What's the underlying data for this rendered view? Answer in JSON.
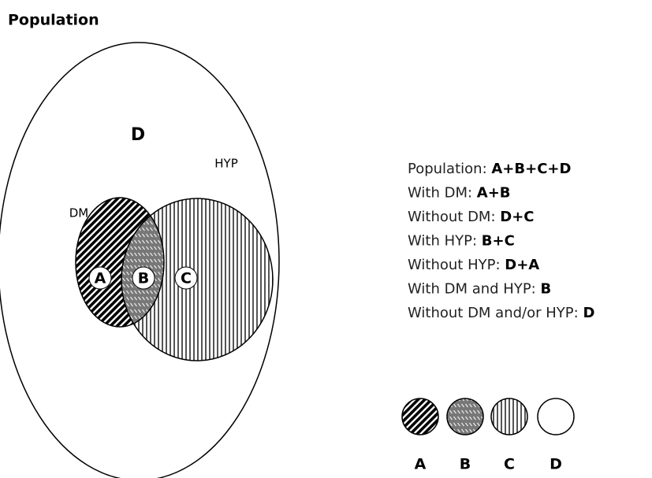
{
  "title": "Population",
  "regions": {
    "D": "D",
    "HYP": "HYP",
    "DM": "DM",
    "A": "A",
    "B": "B",
    "C": "C"
  },
  "definitions": [
    {
      "label": "Population:",
      "value": "A+B+C+D"
    },
    {
      "label": "With DM:",
      "value": "A+B"
    },
    {
      "label": "Without DM:",
      "value": "D+C"
    },
    {
      "label": "With HYP:",
      "value": "B+C"
    },
    {
      "label": "Without HYP:",
      "value": "D+A"
    },
    {
      "label": "With DM and HYP:",
      "value": "B"
    },
    {
      "label": "Without DM and/or HYP:",
      "value": "D"
    }
  ],
  "legend": [
    "A",
    "B",
    "C",
    "D"
  ]
}
